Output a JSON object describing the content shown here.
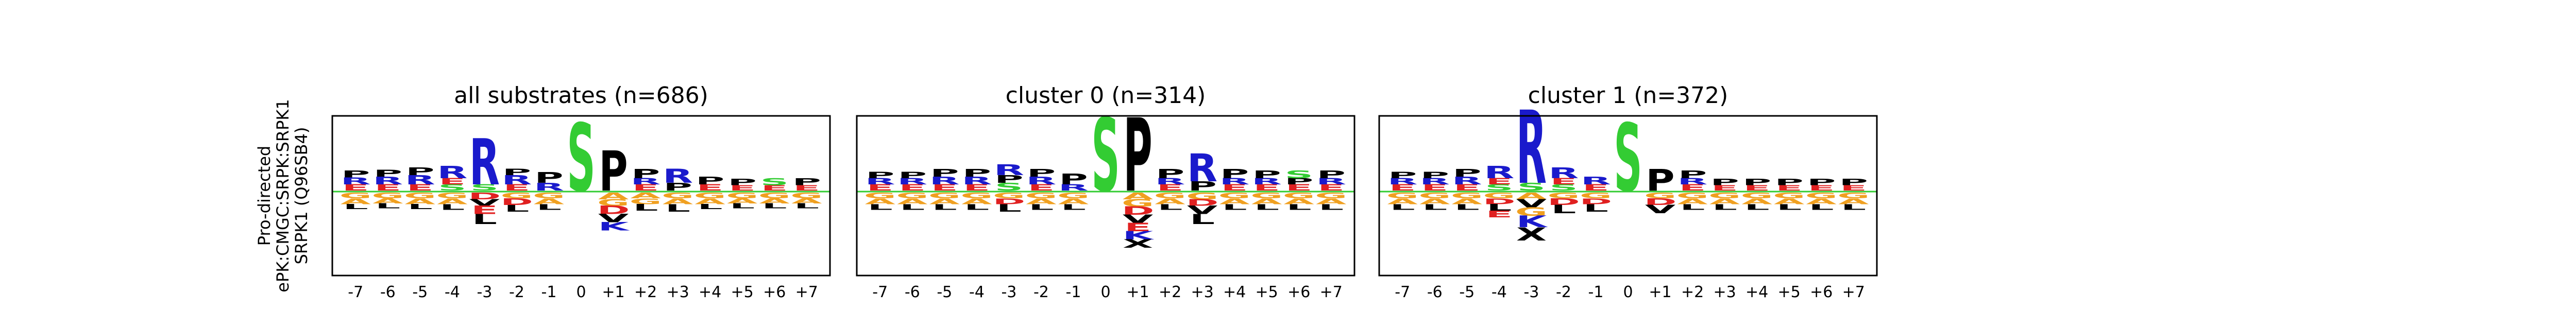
{
  "figure": {
    "ylabel_lines": [
      "Pro-directed",
      "ePK:CMGC:SRPK:SRPK1",
      "SRPK1 (Q96SB4)"
    ]
  },
  "colors": {
    "basic": "#1a1acc",
    "S_T": "#33cc33",
    "P": "#000000",
    "acidic": "#e02020",
    "hydrophobic": "#000000",
    "polar": "#9933cc",
    "amide": "#33aa66",
    "G_C_A": "#f0a020",
    "center_line": "#33cc33"
  },
  "chart_data": [
    {
      "type": "sequence_logo",
      "title": "all substrates (n=686)",
      "positions": [
        "-7",
        "-6",
        "-5",
        "-4",
        "-3",
        "-2",
        "-1",
        "0",
        "+1",
        "+2",
        "+3",
        "+4",
        "+5",
        "+6",
        "+7"
      ],
      "up": [
        [
          [
            "E",
            0.08
          ],
          [
            "R",
            0.09
          ],
          [
            "P",
            0.09
          ]
        ],
        [
          [
            "E",
            0.08
          ],
          [
            "R",
            0.1
          ],
          [
            "P",
            0.09
          ]
        ],
        [
          [
            "E",
            0.08
          ],
          [
            "R",
            0.12
          ],
          [
            "P",
            0.1
          ]
        ],
        [
          [
            "S",
            0.08
          ],
          [
            "E",
            0.08
          ],
          [
            "R",
            0.16
          ]
        ],
        [
          [
            "S",
            0.08
          ],
          [
            "R",
            0.6
          ]
        ],
        [
          [
            "E",
            0.08
          ],
          [
            "R",
            0.12
          ],
          [
            "P",
            0.08
          ]
        ],
        [
          [
            "R",
            0.1
          ],
          [
            "P",
            0.14
          ]
        ],
        [
          [
            "S",
            0.88
          ]
        ],
        [
          [
            "P",
            0.52
          ]
        ],
        [
          [
            "E",
            0.08
          ],
          [
            "R",
            0.08
          ],
          [
            "P",
            0.12
          ]
        ],
        [
          [
            "P",
            0.1
          ],
          [
            "R",
            0.18
          ]
        ],
        [
          [
            "E",
            0.08
          ],
          [
            "P",
            0.1
          ]
        ],
        [
          [
            "E",
            0.07
          ],
          [
            "P",
            0.08
          ]
        ],
        [
          [
            "E",
            0.07
          ],
          [
            "S",
            0.09
          ]
        ],
        [
          [
            "E",
            0.07
          ],
          [
            "P",
            0.09
          ]
        ]
      ],
      "down": [
        [
          [
            "G",
            0.07
          ],
          [
            "A",
            0.07
          ],
          [
            "L",
            0.06
          ]
        ],
        [
          [
            "G",
            0.07
          ],
          [
            "A",
            0.06
          ],
          [
            "L",
            0.06
          ]
        ],
        [
          [
            "G",
            0.07
          ],
          [
            "A",
            0.07
          ],
          [
            "L",
            0.06
          ]
        ],
        [
          [
            "G",
            0.07
          ],
          [
            "A",
            0.07
          ],
          [
            "L",
            0.07
          ]
        ],
        [
          [
            "D",
            0.08
          ],
          [
            "V",
            0.08
          ],
          [
            "E",
            0.1
          ],
          [
            "L",
            0.12
          ]
        ],
        [
          [
            "G",
            0.07
          ],
          [
            "D",
            0.08
          ],
          [
            "L",
            0.08
          ]
        ],
        [
          [
            "G",
            0.07
          ],
          [
            "A",
            0.07
          ],
          [
            "L",
            0.07
          ]
        ],
        [],
        [
          [
            "A",
            0.08
          ],
          [
            "G",
            0.08
          ],
          [
            "D",
            0.1
          ],
          [
            "V",
            0.1
          ],
          [
            "K",
            0.1
          ]
        ],
        [
          [
            "A",
            0.07
          ],
          [
            "G",
            0.07
          ],
          [
            "L",
            0.08
          ]
        ],
        [
          [
            "G",
            0.07
          ],
          [
            "A",
            0.07
          ],
          [
            "L",
            0.09
          ]
        ],
        [
          [
            "G",
            0.07
          ],
          [
            "A",
            0.07
          ],
          [
            "L",
            0.06
          ]
        ],
        [
          [
            "G",
            0.07
          ],
          [
            "A",
            0.06
          ],
          [
            "L",
            0.06
          ]
        ],
        [
          [
            "G",
            0.07
          ],
          [
            "A",
            0.06
          ],
          [
            "L",
            0.06
          ]
        ],
        [
          [
            "G",
            0.07
          ],
          [
            "A",
            0.06
          ],
          [
            "L",
            0.06
          ]
        ]
      ]
    },
    {
      "type": "sequence_logo",
      "title": "cluster 0 (n=314)",
      "positions": [
        "-7",
        "-6",
        "-5",
        "-4",
        "-3",
        "-2",
        "-1",
        "0",
        "+1",
        "+2",
        "+3",
        "+4",
        "+5",
        "+6",
        "+7"
      ],
      "up": [
        [
          [
            "E",
            0.08
          ],
          [
            "R",
            0.08
          ],
          [
            "P",
            0.08
          ]
        ],
        [
          [
            "E",
            0.08
          ],
          [
            "R",
            0.08
          ],
          [
            "P",
            0.08
          ]
        ],
        [
          [
            "E",
            0.08
          ],
          [
            "R",
            0.1
          ],
          [
            "P",
            0.1
          ]
        ],
        [
          [
            "E",
            0.08
          ],
          [
            "R",
            0.1
          ],
          [
            "P",
            0.1
          ]
        ],
        [
          [
            "S",
            0.1
          ],
          [
            "P",
            0.1
          ],
          [
            "R",
            0.14
          ]
        ],
        [
          [
            "E",
            0.08
          ],
          [
            "R",
            0.1
          ],
          [
            "P",
            0.1
          ]
        ],
        [
          [
            "R",
            0.08
          ],
          [
            "P",
            0.14
          ]
        ],
        [
          [
            "S",
            0.95
          ]
        ],
        [
          [
            "P",
            0.95
          ]
        ],
        [
          [
            "E",
            0.08
          ],
          [
            "R",
            0.08
          ],
          [
            "P",
            0.12
          ]
        ],
        [
          [
            "P",
            0.12
          ],
          [
            "R",
            0.36
          ]
        ],
        [
          [
            "E",
            0.08
          ],
          [
            "R",
            0.08
          ],
          [
            "P",
            0.12
          ]
        ],
        [
          [
            "E",
            0.08
          ],
          [
            "R",
            0.08
          ],
          [
            "P",
            0.1
          ]
        ],
        [
          [
            "E",
            0.08
          ],
          [
            "P",
            0.08
          ],
          [
            "S",
            0.1
          ]
        ],
        [
          [
            "E",
            0.08
          ],
          [
            "R",
            0.08
          ],
          [
            "P",
            0.1
          ]
        ]
      ],
      "down": [
        [
          [
            "G",
            0.07
          ],
          [
            "A",
            0.07
          ],
          [
            "L",
            0.07
          ]
        ],
        [
          [
            "G",
            0.07
          ],
          [
            "A",
            0.07
          ],
          [
            "L",
            0.07
          ]
        ],
        [
          [
            "G",
            0.07
          ],
          [
            "A",
            0.07
          ],
          [
            "L",
            0.07
          ]
        ],
        [
          [
            "G",
            0.07
          ],
          [
            "A",
            0.07
          ],
          [
            "L",
            0.07
          ]
        ],
        [
          [
            "G",
            0.07
          ],
          [
            "D",
            0.07
          ],
          [
            "L",
            0.09
          ]
        ],
        [
          [
            "G",
            0.07
          ],
          [
            "A",
            0.07
          ],
          [
            "L",
            0.07
          ]
        ],
        [
          [
            "G",
            0.07
          ],
          [
            "A",
            0.07
          ],
          [
            "L",
            0.07
          ]
        ],
        [],
        [
          [
            "A",
            0.08
          ],
          [
            "G",
            0.09
          ],
          [
            "D",
            0.1
          ],
          [
            "V",
            0.1
          ],
          [
            "E",
            0.1
          ],
          [
            "K",
            0.1
          ],
          [
            "X",
            0.1
          ]
        ],
        [
          [
            "G",
            0.07
          ],
          [
            "A",
            0.07
          ],
          [
            "L",
            0.07
          ]
        ],
        [
          [
            "G",
            0.08
          ],
          [
            "D",
            0.08
          ],
          [
            "V",
            0.1
          ],
          [
            "L",
            0.12
          ]
        ],
        [
          [
            "G",
            0.07
          ],
          [
            "A",
            0.07
          ],
          [
            "L",
            0.07
          ]
        ],
        [
          [
            "G",
            0.07
          ],
          [
            "A",
            0.07
          ],
          [
            "L",
            0.07
          ]
        ],
        [
          [
            "G",
            0.07
          ],
          [
            "A",
            0.07
          ],
          [
            "L",
            0.07
          ]
        ],
        [
          [
            "G",
            0.07
          ],
          [
            "A",
            0.07
          ],
          [
            "L",
            0.07
          ]
        ]
      ]
    },
    {
      "type": "sequence_logo",
      "title": "cluster 1 (n=372)",
      "positions": [
        "-7",
        "-6",
        "-5",
        "-4",
        "-3",
        "-2",
        "-1",
        "0",
        "+1",
        "+2",
        "+3",
        "+4",
        "+5",
        "+6",
        "+7"
      ],
      "up": [
        [
          [
            "E",
            0.08
          ],
          [
            "R",
            0.08
          ],
          [
            "P",
            0.08
          ]
        ],
        [
          [
            "E",
            0.08
          ],
          [
            "R",
            0.08
          ],
          [
            "P",
            0.08
          ]
        ],
        [
          [
            "E",
            0.08
          ],
          [
            "R",
            0.1
          ],
          [
            "P",
            0.1
          ]
        ],
        [
          [
            "S",
            0.08
          ],
          [
            "E",
            0.08
          ],
          [
            "R",
            0.16
          ]
        ],
        [
          [
            "S",
            0.1
          ],
          [
            "R",
            0.95
          ]
        ],
        [
          [
            "S",
            0.08
          ],
          [
            "E",
            0.08
          ],
          [
            "R",
            0.14
          ]
        ],
        [
          [
            "E",
            0.08
          ],
          [
            "R",
            0.1
          ]
        ],
        [
          [
            "S",
            0.88
          ]
        ],
        [
          [
            "P",
            0.28
          ]
        ],
        [
          [
            "E",
            0.08
          ],
          [
            "R",
            0.08
          ],
          [
            "P",
            0.1
          ]
        ],
        [
          [
            "E",
            0.07
          ],
          [
            "P",
            0.08
          ]
        ],
        [
          [
            "E",
            0.07
          ],
          [
            "P",
            0.08
          ]
        ],
        [
          [
            "E",
            0.07
          ],
          [
            "P",
            0.08
          ]
        ],
        [
          [
            "E",
            0.07
          ],
          [
            "P",
            0.08
          ]
        ],
        [
          [
            "E",
            0.07
          ],
          [
            "P",
            0.08
          ]
        ]
      ],
      "down": [
        [
          [
            "G",
            0.07
          ],
          [
            "A",
            0.07
          ],
          [
            "L",
            0.07
          ]
        ],
        [
          [
            "G",
            0.07
          ],
          [
            "A",
            0.07
          ],
          [
            "L",
            0.07
          ]
        ],
        [
          [
            "G",
            0.07
          ],
          [
            "A",
            0.07
          ],
          [
            "L",
            0.07
          ]
        ],
        [
          [
            "G",
            0.07
          ],
          [
            "D",
            0.07
          ],
          [
            "L",
            0.08
          ],
          [
            "E",
            0.08
          ]
        ],
        [
          [
            "A",
            0.08
          ],
          [
            "V",
            0.1
          ],
          [
            "G",
            0.1
          ],
          [
            "K",
            0.14
          ],
          [
            "X",
            0.16
          ]
        ],
        [
          [
            "G",
            0.07
          ],
          [
            "D",
            0.08
          ],
          [
            "L",
            0.1
          ]
        ],
        [
          [
            "G",
            0.07
          ],
          [
            "D",
            0.07
          ],
          [
            "L",
            0.09
          ]
        ],
        [],
        [
          [
            "G",
            0.07
          ],
          [
            "D",
            0.08
          ],
          [
            "V",
            0.1
          ]
        ],
        [
          [
            "G",
            0.07
          ],
          [
            "A",
            0.07
          ],
          [
            "L",
            0.07
          ]
        ],
        [
          [
            "G",
            0.07
          ],
          [
            "A",
            0.07
          ],
          [
            "L",
            0.07
          ]
        ],
        [
          [
            "G",
            0.07
          ],
          [
            "A",
            0.07
          ],
          [
            "L",
            0.07
          ]
        ],
        [
          [
            "G",
            0.07
          ],
          [
            "A",
            0.07
          ],
          [
            "L",
            0.07
          ]
        ],
        [
          [
            "G",
            0.07
          ],
          [
            "A",
            0.07
          ],
          [
            "L",
            0.07
          ]
        ],
        [
          [
            "G",
            0.07
          ],
          [
            "A",
            0.07
          ],
          [
            "L",
            0.07
          ]
        ]
      ]
    }
  ]
}
